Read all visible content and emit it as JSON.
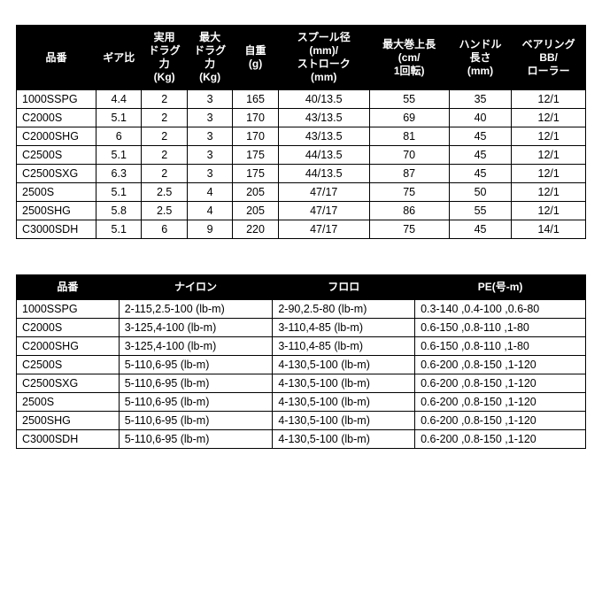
{
  "table1": {
    "columns": [
      "品番",
      "ギア比",
      "実用\nドラグ\n力\n(Kg)",
      "最大\nドラグ\n力\n(Kg)",
      "自重\n(g)",
      "スプール径\n(mm)/\nストローク\n(mm)",
      "最大巻上長\n(cm/\n1回転)",
      "ハンドル\n長さ\n(mm)",
      "ベアリング\nBB/\nローラー"
    ],
    "col_widths": [
      "14%",
      "8%",
      "8%",
      "8%",
      "8%",
      "16%",
      "14%",
      "11%",
      "13%"
    ],
    "rows": [
      [
        "1000SSPG",
        "4.4",
        "2",
        "3",
        "165",
        "40/13.5",
        "55",
        "35",
        "12/1"
      ],
      [
        "C2000S",
        "5.1",
        "2",
        "3",
        "170",
        "43/13.5",
        "69",
        "40",
        "12/1"
      ],
      [
        "C2000SHG",
        "6",
        "2",
        "3",
        "170",
        "43/13.5",
        "81",
        "45",
        "12/1"
      ],
      [
        "C2500S",
        "5.1",
        "2",
        "3",
        "175",
        "44/13.5",
        "70",
        "45",
        "12/1"
      ],
      [
        "C2500SXG",
        "6.3",
        "2",
        "3",
        "175",
        "44/13.5",
        "87",
        "45",
        "12/1"
      ],
      [
        "2500S",
        "5.1",
        "2.5",
        "4",
        "205",
        "47/17",
        "75",
        "50",
        "12/1"
      ],
      [
        "2500SHG",
        "5.8",
        "2.5",
        "4",
        "205",
        "47/17",
        "86",
        "55",
        "12/1"
      ],
      [
        "C3000SDH",
        "5.1",
        "6",
        "9",
        "220",
        "47/17",
        "75",
        "45",
        "14/1"
      ]
    ]
  },
  "table2": {
    "columns": [
      "品番",
      "ナイロン",
      "フロロ",
      "PE(号-m)"
    ],
    "col_widths": [
      "18%",
      "27%",
      "25%",
      "30%"
    ],
    "rows": [
      [
        "1000SSPG",
        "2-115,2.5-100 (lb-m)",
        "2-90,2.5-80 (lb-m)",
        "0.3-140 ,0.4-100 ,0.6-80"
      ],
      [
        "C2000S",
        "3-125,4-100 (lb-m)",
        "3-110,4-85 (lb-m)",
        "0.6-150 ,0.8-110 ,1-80"
      ],
      [
        "C2000SHG",
        "3-125,4-100 (lb-m)",
        "3-110,4-85 (lb-m)",
        "0.6-150 ,0.8-110 ,1-80"
      ],
      [
        "C2500S",
        "5-110,6-95 (lb-m)",
        "4-130,5-100 (lb-m)",
        "0.6-200 ,0.8-150 ,1-120"
      ],
      [
        "C2500SXG",
        "5-110,6-95 (lb-m)",
        "4-130,5-100 (lb-m)",
        "0.6-200 ,0.8-150 ,1-120"
      ],
      [
        "2500S",
        "5-110,6-95 (lb-m)",
        "4-130,5-100 (lb-m)",
        "0.6-200 ,0.8-150 ,1-120"
      ],
      [
        "2500SHG",
        "5-110,6-95 (lb-m)",
        "4-130,5-100 (lb-m)",
        "0.6-200 ,0.8-150 ,1-120"
      ],
      [
        "C3000SDH",
        "5-110,6-95 (lb-m)",
        "4-130,5-100 (lb-m)",
        "0.6-200 ,0.8-150 ,1-120"
      ]
    ]
  }
}
